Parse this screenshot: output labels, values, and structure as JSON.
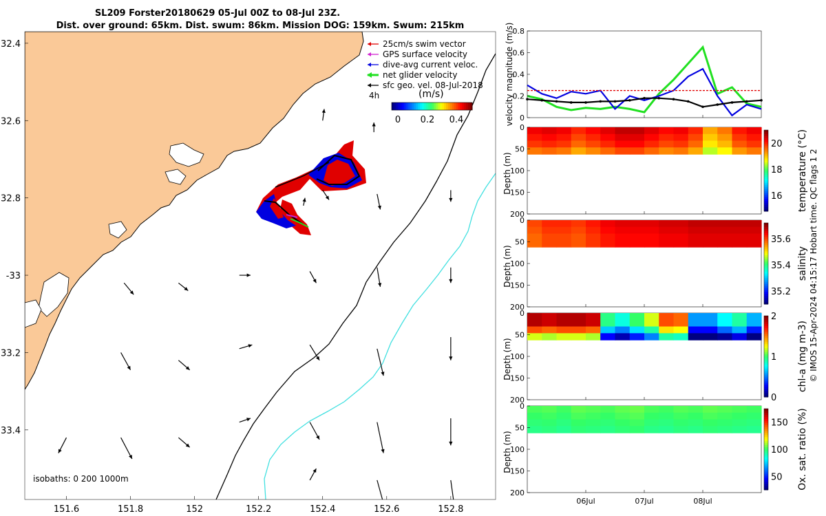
{
  "title": {
    "line1": "SL209 Forster20180629 05-Jul 00Z to 08-Jul 23Z.",
    "line2": "Dist. over ground: 65km. Dist. swum: 86km. Mission DOG: 159km. Swum: 215km"
  },
  "copyright": "© IMOS 15-Apr-2024 04:15:17 Hobart time. QC flags 1  2",
  "colors": {
    "land": "#FAC998",
    "isobath_200": "#000000",
    "isobath_1000": "#40E0E0",
    "swim": "#E00000",
    "gps": "#D020D0",
    "dive": "#0000E0",
    "net": "#20E020",
    "geo": "#000000"
  },
  "chart_data": [
    {
      "type": "map",
      "xlim": [
        151.47,
        152.94
      ],
      "ylim": [
        -33.58,
        -32.37
      ],
      "xticks": [
        151.6,
        151.8,
        152,
        152.2,
        152.4,
        152.6,
        152.8
      ],
      "xtick_labels": [
        "151.6",
        "151.8",
        "152",
        "152.2",
        "152.4",
        "152.6",
        "152.8"
      ],
      "yticks": [
        -32.4,
        -32.6,
        -32.8,
        -33,
        -33.2,
        -33.4
      ],
      "ytick_labels": [
        "32.4",
        "32.6",
        "32.8",
        "-33",
        "33.2",
        "33.4"
      ],
      "legend": [
        {
          "label": "25cm/s swim vector",
          "color": "#E00000"
        },
        {
          "label": "GPS surface velocity",
          "color": "#D020D0"
        },
        {
          "label": "dive-avg current veloc.",
          "color": "#0000E0"
        },
        {
          "label": "net glider velocity",
          "color": "#20E020"
        },
        {
          "label": "sfc geo. vel. 08-Jul-2018",
          "color": "#000000"
        }
      ],
      "legend_extra": "4h",
      "colorbar": {
        "label": "(m/s)",
        "range": [
          0,
          0.5
        ],
        "tick_labels": [
          "0",
          "0.2",
          "0.4"
        ]
      },
      "isobaths_label": "isobaths: 0   200  1000m",
      "geo_vectors_deg": [
        {
          "lon": 151.6,
          "lat": -33.42,
          "u": -0.025,
          "v": -0.04
        },
        {
          "lon": 151.77,
          "lat": -33.2,
          "u": 0.03,
          "v": -0.045
        },
        {
          "lon": 151.77,
          "lat": -33.42,
          "u": 0.035,
          "v": -0.055
        },
        {
          "lon": 151.78,
          "lat": -33.02,
          "u": 0.03,
          "v": -0.03
        },
        {
          "lon": 151.95,
          "lat": -33.02,
          "u": 0.03,
          "v": -0.02
        },
        {
          "lon": 151.95,
          "lat": -33.22,
          "u": 0.035,
          "v": -0.025
        },
        {
          "lon": 151.95,
          "lat": -33.42,
          "u": 0.035,
          "v": -0.025
        },
        {
          "lon": 152.14,
          "lat": -33.0,
          "u": 0.035,
          "v": 0.0
        },
        {
          "lon": 152.14,
          "lat": -33.19,
          "u": 0.04,
          "v": 0.01
        },
        {
          "lon": 152.14,
          "lat": -33.38,
          "u": 0.035,
          "v": 0.01
        },
        {
          "lon": 152.34,
          "lat": -32.82,
          "u": 0.005,
          "v": 0.02
        },
        {
          "lon": 152.36,
          "lat": -32.99,
          "u": 0.02,
          "v": -0.03
        },
        {
          "lon": 152.36,
          "lat": -33.18,
          "u": 0.03,
          "v": -0.04
        },
        {
          "lon": 152.36,
          "lat": -33.38,
          "u": 0.03,
          "v": -0.045
        },
        {
          "lon": 152.36,
          "lat": -33.53,
          "u": 0.02,
          "v": 0.03
        },
        {
          "lon": 152.4,
          "lat": -32.6,
          "u": 0.005,
          "v": 0.03
        },
        {
          "lon": 152.4,
          "lat": -32.78,
          "u": 0.02,
          "v": -0.025
        },
        {
          "lon": 152.56,
          "lat": -32.63,
          "u": 0.0,
          "v": 0.025
        },
        {
          "lon": 152.57,
          "lat": -32.79,
          "u": 0.01,
          "v": -0.04
        },
        {
          "lon": 152.57,
          "lat": -32.98,
          "u": 0.01,
          "v": -0.05
        },
        {
          "lon": 152.57,
          "lat": -33.19,
          "u": 0.02,
          "v": -0.07
        },
        {
          "lon": 152.57,
          "lat": -33.38,
          "u": 0.02,
          "v": -0.08
        },
        {
          "lon": 152.57,
          "lat": -33.53,
          "u": 0.02,
          "v": -0.06
        },
        {
          "lon": 152.8,
          "lat": -32.78,
          "u": 0.0,
          "v": -0.03
        },
        {
          "lon": 152.8,
          "lat": -32.98,
          "u": 0.0,
          "v": -0.04
        },
        {
          "lon": 152.8,
          "lat": -33.16,
          "u": 0.0,
          "v": -0.06
        },
        {
          "lon": 152.8,
          "lat": -33.37,
          "u": 0.0,
          "v": -0.07
        },
        {
          "lon": 152.8,
          "lat": -33.53,
          "u": 0.01,
          "v": -0.06
        }
      ]
    },
    {
      "type": "line",
      "ylabel": "velocity magnitude (m/s)",
      "ylim": [
        0,
        0.8
      ],
      "yticks": [
        "0",
        "0.2",
        "0.4",
        "0.6",
        "0.8"
      ],
      "x_days": [
        0,
        0.25,
        0.5,
        0.75,
        1.0,
        1.25,
        1.5,
        1.75,
        2.0,
        2.25,
        2.5,
        2.75,
        3.0,
        3.25,
        3.5,
        3.75,
        4.0
      ],
      "series": [
        {
          "color": "#20E020",
          "values": [
            0.2,
            0.17,
            0.1,
            0.07,
            0.09,
            0.08,
            0.1,
            0.08,
            0.05,
            0.22,
            0.35,
            0.5,
            0.65,
            0.22,
            0.28,
            0.13,
            0.1
          ]
        },
        {
          "color": "#0000E0",
          "values": [
            0.3,
            0.22,
            0.18,
            0.24,
            0.22,
            0.25,
            0.08,
            0.2,
            0.16,
            0.2,
            0.25,
            0.38,
            0.45,
            0.2,
            0.02,
            0.12,
            0.08
          ]
        },
        {
          "color": "#000000",
          "values": [
            0.17,
            0.16,
            0.15,
            0.14,
            0.14,
            0.15,
            0.15,
            0.16,
            0.18,
            0.18,
            0.17,
            0.15,
            0.1,
            0.12,
            0.14,
            0.15,
            0.16
          ]
        },
        {
          "color": "#E00000",
          "values": [
            0.25,
            0.25,
            0.25,
            0.25,
            0.25,
            0.25,
            0.25,
            0.25,
            0.25,
            0.25,
            0.25,
            0.25,
            0.25,
            0.25,
            0.25,
            0.25,
            0.25
          ]
        }
      ]
    },
    {
      "type": "heatmap",
      "label": "temperature (°C)",
      "clim": [
        14.8,
        21
      ],
      "cticks": [
        "16",
        "18",
        "20"
      ],
      "ylabel": "Depth (m)",
      "ylim": [
        0,
        200
      ],
      "yticks": [
        "0",
        "50",
        "100",
        "150",
        "200"
      ],
      "data_depth_max": 62,
      "x_values": [
        20.3,
        20.4,
        20.3,
        20.0,
        20.2,
        20.4,
        20.6,
        20.6,
        20.4,
        20.2,
        20.3,
        20.0,
        19.2,
        19.5,
        20.1,
        20.3
      ],
      "depth_values": [
        20.4,
        20.2,
        20.0,
        19.6
      ]
    },
    {
      "type": "heatmap",
      "label": "salinity",
      "clim": [
        35.1,
        35.72
      ],
      "cticks": [
        "35.6",
        "35.4",
        "35.2"
      ],
      "ylabel": "Depth (m)",
      "ylim": [
        0,
        200
      ],
      "yticks": [
        "0",
        "50",
        "100",
        "150",
        "200"
      ],
      "data_depth_max": 62,
      "x_values": [
        35.6,
        35.62,
        35.62,
        35.61,
        35.63,
        35.65,
        35.66,
        35.66,
        35.66,
        35.67,
        35.67,
        35.68,
        35.68,
        35.68,
        35.68,
        35.68
      ],
      "depth_values": [
        35.66,
        35.65,
        35.64,
        35.64
      ]
    },
    {
      "type": "heatmap",
      "label": "chl-a (mg m-3)",
      "clim": [
        0,
        2
      ],
      "cticks": [
        "0",
        "1",
        "2"
      ],
      "ylabel": "Depth (m)",
      "ylim": [
        0,
        200
      ],
      "yticks": [
        "0",
        "50",
        "100",
        "150",
        "200"
      ],
      "data_depth_max": 62,
      "x_values": [
        1.9,
        1.85,
        1.9,
        1.9,
        1.85,
        0.95,
        0.8,
        1.0,
        1.2,
        1.6,
        1.55,
        0.55,
        0.55,
        0.75,
        0.9,
        0.6
      ],
      "depth_values": [
        1.0,
        1.0,
        0.7,
        0.3
      ]
    },
    {
      "type": "heatmap",
      "label": "Ox. sat. ratio (%)",
      "clim": [
        25,
        175
      ],
      "cticks": [
        "150",
        "100",
        "50"
      ],
      "ylabel": "Depth (m)",
      "ylim": [
        0,
        200
      ],
      "yticks": [
        "0",
        "50",
        "100",
        "150",
        "200"
      ],
      "data_depth_max": 62,
      "x_values": [
        102,
        103,
        101,
        104,
        103,
        102,
        104,
        105,
        102,
        101,
        103,
        102,
        104,
        103,
        102,
        101
      ],
      "depth_values": [
        104,
        102,
        100,
        98
      ]
    }
  ],
  "time_axis": {
    "ticks": [
      "06Jul",
      "07Jul",
      "08Jul"
    ],
    "tick_days": [
      1,
      2,
      3
    ],
    "xlim_days": [
      0,
      4
    ]
  }
}
